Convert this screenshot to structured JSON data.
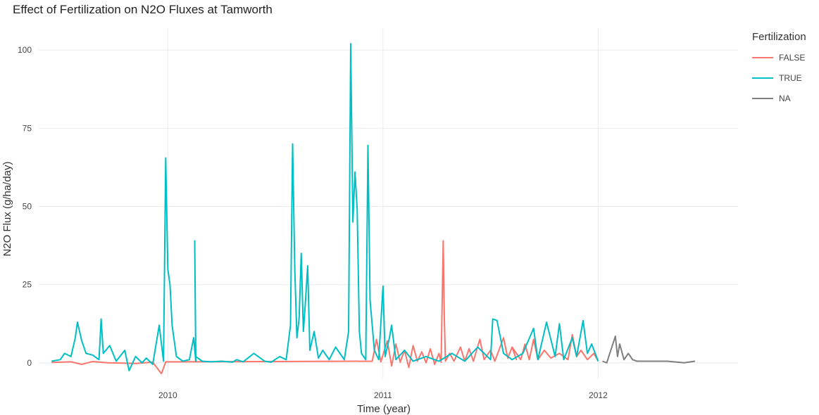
{
  "chart_data": {
    "type": "line",
    "title": "Effect of Fertilization on N2O Fluxes at Tamworth",
    "xlabel": "Time (year)",
    "ylabel": "N2O Flux (g/ha/day)",
    "xlim": [
      2009.4,
      2012.65
    ],
    "ylim": [
      -5,
      107
    ],
    "x_ticks": [
      2010,
      2011,
      2012
    ],
    "x_tick_labels": [
      "2010",
      "2011",
      "2012"
    ],
    "y_ticks": [
      0,
      25,
      50,
      75,
      100
    ],
    "y_tick_labels": [
      "0",
      "25",
      "50",
      "75",
      "100"
    ],
    "grid": true,
    "legend": {
      "title": "Fertilization",
      "placement": "right"
    },
    "series": [
      {
        "name": "FALSE",
        "color": "#F8766D",
        "points": [
          [
            2009.46,
            0.1
          ],
          [
            2009.55,
            0.3
          ],
          [
            2009.6,
            -0.5
          ],
          [
            2009.65,
            0.4
          ],
          [
            2009.72,
            0.0
          ],
          [
            2009.85,
            -0.2
          ],
          [
            2009.93,
            0.2
          ],
          [
            2009.97,
            -3.5
          ],
          [
            2009.99,
            0.3
          ],
          [
            2010.95,
            0.5
          ],
          [
            2010.97,
            7.5
          ],
          [
            2010.99,
            0.3
          ],
          [
            2011.02,
            7.0
          ],
          [
            2011.04,
            -1.0
          ],
          [
            2011.06,
            6.0
          ],
          [
            2011.08,
            0.2
          ],
          [
            2011.1,
            4.0
          ],
          [
            2011.12,
            -1.5
          ],
          [
            2011.14,
            5.5
          ],
          [
            2011.16,
            0.5
          ],
          [
            2011.18,
            3.5
          ],
          [
            2011.2,
            0.0
          ],
          [
            2011.22,
            4.5
          ],
          [
            2011.24,
            -0.5
          ],
          [
            2011.26,
            3.0
          ],
          [
            2011.27,
            0.2
          ],
          [
            2011.28,
            39.0
          ],
          [
            2011.285,
            15.0
          ],
          [
            2011.29,
            0.5
          ],
          [
            2011.31,
            3.0
          ],
          [
            2011.33,
            0.5
          ],
          [
            2011.36,
            5.0
          ],
          [
            2011.38,
            0.5
          ],
          [
            2011.4,
            4.5
          ],
          [
            2011.42,
            0.5
          ],
          [
            2011.45,
            7.5
          ],
          [
            2011.47,
            1.0
          ],
          [
            2011.5,
            4.0
          ],
          [
            2011.52,
            0.5
          ],
          [
            2011.56,
            8.0
          ],
          [
            2011.58,
            1.5
          ],
          [
            2011.6,
            5.0
          ],
          [
            2011.62,
            1.0
          ],
          [
            2011.6,
            5.0
          ],
          [
            2011.6,
            5.0
          ],
          [
            2011.6,
            5.0
          ],
          [
            2011.6,
            5.0
          ],
          [
            2011.6,
            5.0
          ],
          [
            2011.6,
            5.0
          ],
          [
            2011.6,
            5.0
          ],
          [
            2011.6,
            5.0
          ],
          [
            2011.6,
            5.0
          ],
          [
            2011.6,
            5.0
          ],
          [
            2011.6,
            5.0
          ],
          [
            2011.6,
            5.0
          ],
          [
            2011.6,
            5.0
          ],
          [
            2011.6,
            5.0
          ],
          [
            2011.6,
            5.0
          ],
          [
            2011.6,
            5.0
          ],
          [
            2011.6,
            5.0
          ],
          [
            2011.6,
            5.0
          ],
          [
            2011.6,
            5.0
          ],
          [
            2011.6,
            5.0
          ],
          [
            2011.6,
            5.0
          ],
          [
            2011.6,
            5.0
          ],
          [
            2011.6,
            5.0
          ],
          [
            2011.6,
            5.0
          ],
          [
            2011.6,
            5.0
          ],
          [
            2011.6,
            5.0
          ],
          [
            2011.6,
            5.0
          ],
          [
            2011.6,
            5.0
          ],
          [
            2011.6,
            5.0
          ],
          [
            2011.6,
            5.0
          ],
          [
            2011.6,
            5.0
          ],
          [
            2011.6,
            5.0
          ],
          [
            2011.6,
            5.0
          ],
          [
            2011.6,
            5.0
          ],
          [
            2011.6,
            5.0
          ],
          [
            2011.6,
            5.0
          ],
          [
            2011.6,
            5.0
          ],
          [
            2011.6,
            5.0
          ],
          [
            2011.6,
            5.0
          ],
          [
            2011.6,
            5.0
          ],
          [
            2011.6,
            5.0
          ],
          [
            2011.6,
            5.0
          ],
          [
            2011.6,
            5.0
          ],
          [
            2011.6,
            5.0
          ],
          [
            2011.6,
            5.0
          ],
          [
            2011.6,
            5.0
          ],
          [
            2011.6,
            5.0
          ],
          [
            2011.6,
            5.0
          ],
          [
            2011.6,
            5.0
          ],
          [
            2011.6,
            5.0
          ],
          [
            2011.6,
            5.0
          ],
          [
            2011.6,
            5.0
          ],
          [
            2011.6,
            5.0
          ],
          [
            2011.6,
            5.0
          ],
          [
            2011.6,
            5.0
          ],
          [
            2011.6,
            5.0
          ],
          [
            2011.64,
            1.0
          ],
          [
            2011.66,
            6.0
          ],
          [
            2011.68,
            1.0
          ],
          [
            2011.7,
            7.5
          ],
          [
            2011.72,
            1.0
          ],
          [
            2011.75,
            4.0
          ],
          [
            2011.78,
            1.5
          ],
          [
            2011.82,
            3.0
          ],
          [
            2011.86,
            1.0
          ],
          [
            2011.88,
            9.0
          ],
          [
            2011.9,
            2.0
          ],
          [
            2011.92,
            4.0
          ],
          [
            2011.95,
            1.0
          ],
          [
            2011.98,
            3.0
          ],
          [
            2012.0,
            0.5
          ]
        ]
      },
      {
        "name": "TRUE",
        "color": "#00BFC4",
        "points": [
          [
            2009.46,
            0.5
          ],
          [
            2009.5,
            1.0
          ],
          [
            2009.52,
            3.0
          ],
          [
            2009.55,
            2.0
          ],
          [
            2009.57,
            8.0
          ],
          [
            2009.58,
            13.0
          ],
          [
            2009.6,
            7.0
          ],
          [
            2009.62,
            3.0
          ],
          [
            2009.65,
            2.5
          ],
          [
            2009.68,
            1.0
          ],
          [
            2009.69,
            14.0
          ],
          [
            2009.7,
            3.0
          ],
          [
            2009.73,
            5.5
          ],
          [
            2009.76,
            0.5
          ],
          [
            2009.8,
            4.0
          ],
          [
            2009.82,
            -2.5
          ],
          [
            2009.85,
            2.0
          ],
          [
            2009.88,
            0.0
          ],
          [
            2009.9,
            1.5
          ],
          [
            2009.93,
            -0.5
          ],
          [
            2009.96,
            12.0
          ],
          [
            2009.98,
            0.5
          ],
          [
            2009.99,
            65.5
          ],
          [
            2010.0,
            30.0
          ],
          [
            2010.01,
            25.0
          ],
          [
            2010.02,
            12.0
          ],
          [
            2010.04,
            2.0
          ],
          [
            2010.07,
            0.5
          ],
          [
            2010.1,
            1.0
          ],
          [
            2010.12,
            8.0
          ],
          [
            2010.13,
            0.5
          ],
          [
            2010.125,
            39.0
          ],
          [
            2010.13,
            2.0
          ],
          [
            2010.16,
            0.5
          ],
          [
            2010.2,
            0.3
          ],
          [
            2010.25,
            0.5
          ],
          [
            2010.3,
            0.2
          ],
          [
            2010.32,
            1.0
          ],
          [
            2010.35,
            0.3
          ],
          [
            2010.4,
            3.0
          ],
          [
            2010.45,
            0.5
          ],
          [
            2010.48,
            0.2
          ],
          [
            2010.52,
            2.0
          ],
          [
            2010.55,
            1.0
          ],
          [
            2010.57,
            12.0
          ],
          [
            2010.58,
            70.0
          ],
          [
            2010.59,
            30.0
          ],
          [
            2010.6,
            8.0
          ],
          [
            2010.61,
            14.0
          ],
          [
            2010.62,
            35.0
          ],
          [
            2010.63,
            10.0
          ],
          [
            2010.64,
            20.0
          ],
          [
            2010.65,
            31.0
          ],
          [
            2010.66,
            4.0
          ],
          [
            2010.68,
            10.0
          ],
          [
            2010.7,
            1.5
          ],
          [
            2010.72,
            4.0
          ],
          [
            2010.75,
            1.0
          ],
          [
            2010.78,
            5.0
          ],
          [
            2010.82,
            1.0
          ],
          [
            2010.84,
            10.0
          ],
          [
            2010.85,
            102.0
          ],
          [
            2010.86,
            45.0
          ],
          [
            2010.87,
            61.0
          ],
          [
            2010.88,
            49.0
          ],
          [
            2010.89,
            10.0
          ],
          [
            2010.9,
            3.0
          ],
          [
            2010.92,
            1.0
          ],
          [
            2010.93,
            69.5
          ],
          [
            2010.94,
            20.0
          ],
          [
            2010.96,
            4.0
          ],
          [
            2010.98,
            1.0
          ],
          [
            2011.0,
            24.5
          ],
          [
            2011.01,
            2.0
          ],
          [
            2011.03,
            8.0
          ],
          [
            2011.04,
            12.0
          ],
          [
            2011.06,
            1.0
          ],
          [
            2011.1,
            4.0
          ],
          [
            2011.14,
            0.5
          ],
          [
            2011.2,
            2.0
          ],
          [
            2011.26,
            0.5
          ],
          [
            2011.32,
            3.0
          ],
          [
            2011.38,
            0.5
          ],
          [
            2011.44,
            5.0
          ],
          [
            2011.5,
            1.0
          ],
          [
            2011.51,
            14.0
          ],
          [
            2011.53,
            13.5
          ],
          [
            2011.56,
            3.0
          ],
          [
            2011.6,
            1.0
          ],
          [
            2011.65,
            3.0
          ],
          [
            2011.7,
            11.0
          ],
          [
            2011.72,
            1.0
          ],
          [
            2011.76,
            13.0
          ],
          [
            2011.8,
            2.0
          ],
          [
            2011.82,
            12.5
          ],
          [
            2011.84,
            1.0
          ],
          [
            2011.88,
            8.0
          ],
          [
            2011.9,
            2.0
          ],
          [
            2011.93,
            13.5
          ],
          [
            2011.95,
            3.0
          ],
          [
            2011.97,
            6.0
          ],
          [
            2012.0,
            0.5
          ]
        ]
      },
      {
        "name": "NA",
        "color": "#7F7F7F",
        "points": [
          [
            2012.02,
            0.5
          ],
          [
            2012.04,
            0.0
          ],
          [
            2012.08,
            8.5
          ],
          [
            2012.09,
            2.0
          ],
          [
            2012.1,
            6.0
          ],
          [
            2012.12,
            1.0
          ],
          [
            2012.14,
            3.0
          ],
          [
            2012.16,
            1.0
          ],
          [
            2012.18,
            0.5
          ],
          [
            2012.32,
            0.5
          ],
          [
            2012.4,
            0.0
          ],
          [
            2012.45,
            0.5
          ]
        ]
      }
    ]
  }
}
